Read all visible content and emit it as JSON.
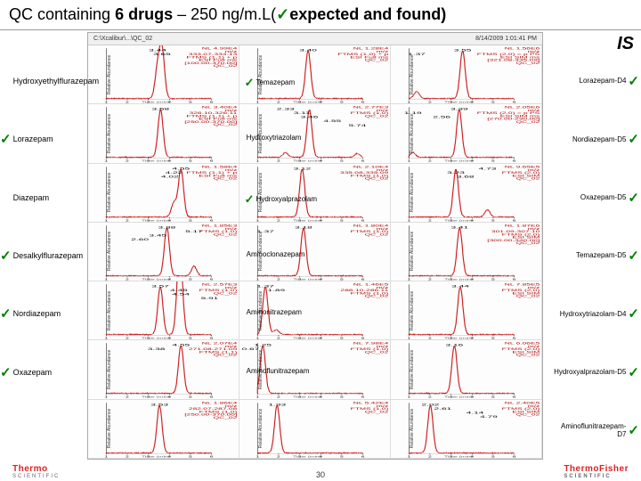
{
  "title": {
    "pre": "QC containing ",
    "bold": "6 drugs",
    "mid": " – 250 ng/m.L(",
    "post": "expected and found)"
  },
  "header": {
    "path": "C:\\Xcalibur\\...\\QC_02",
    "date": "8/14/2009 1:01:41 PM"
  },
  "is_label": "IS",
  "page_num": "30",
  "colors": {
    "peak": "#cc2222",
    "tick": "#008000",
    "meta": "#b00000"
  },
  "left_drugs": [
    {
      "name": "Hydroxyethylflurazepam",
      "tick": false
    },
    {
      "name": "Lorazepam",
      "tick": true
    },
    {
      "name": "Diazepam",
      "tick": false
    },
    {
      "name": "Desalkylflurazepam",
      "tick": true
    },
    {
      "name": "Nordiazepam",
      "tick": true
    },
    {
      "name": "Oxazepam",
      "tick": true
    }
  ],
  "mid_drugs": [
    {
      "name": "Temazepam",
      "tick": true
    },
    {
      "name": "Hydroxytriazolam",
      "tick": false
    },
    {
      "name": "Hydroxyalprazolam",
      "tick": true
    },
    {
      "name": "Aminoclonazepam",
      "tick": false
    },
    {
      "name": "Aminonitrazepam",
      "tick": false
    },
    {
      "name": "Aminoflunitrazepam",
      "tick": false
    }
  ],
  "right_drugs": [
    {
      "name": "Lorazepam-D4",
      "tick": true
    },
    {
      "name": "Nordiazepam-D5",
      "tick": true
    },
    {
      "name": "Oxazepam-D5",
      "tick": true
    },
    {
      "name": "Temazepam-D5",
      "tick": true
    },
    {
      "name": "Hydroxytriazolam-D4",
      "tick": true
    },
    {
      "name": "Hydroxyalprazolam-D5",
      "tick": true
    },
    {
      "name": "Aminoflunitrazepam-D7",
      "tick": true
    }
  ],
  "panels": [
    {
      "rts": [
        "3.44",
        "3.65"
      ],
      "peaks": [
        [
          3.44,
          0.6
        ],
        [
          3.65,
          1.0
        ]
      ],
      "meta": [
        "NL 4.99E4",
        "m/z",
        "333.07-334.13",
        "FTMS (1,1) + p",
        "ESI Full ms",
        "[100.00-370.00]",
        "QC_02"
      ]
    },
    {
      "rts": [
        "3.40"
      ],
      "peaks": [
        [
          3.4,
          1.0
        ]
      ],
      "meta": [
        "NL 1.28E4",
        "m/z",
        "FTMS (1,0) + p",
        "ESI Full ms",
        "QC_02"
      ]
    },
    {
      "rts": [
        "3.55",
        "1.37"
      ],
      "peaks": [
        [
          3.55,
          1.0
        ],
        [
          1.37,
          0.15
        ]
      ],
      "meta": [
        "NL 1.56E6",
        "m/z",
        "FTMS (2,0) = p PS",
        "ESI SIM ms",
        "[321.08-335.09]",
        "QC_02"
      ]
    },
    {
      "rts": [
        "3.58"
      ],
      "peaks": [
        [
          3.58,
          1.0
        ]
      ],
      "meta": [
        "NL 3.40E4",
        "m/z",
        "326.10-326.11",
        "FTMS (1,1) + p",
        "ESI Full ms",
        "[250.00-370.00]",
        "QC_02"
      ]
    },
    {
      "rts": [
        "2.33",
        "3.11",
        "3.46",
        "4.55",
        "5.74"
      ],
      "peaks": [
        [
          3.46,
          1.0
        ],
        [
          2.33,
          0.1
        ],
        [
          5.74,
          0.08
        ]
      ],
      "meta": [
        "NL 2.77E3",
        "m/z",
        "FTMS (1,0)",
        "QC_02"
      ]
    },
    {
      "rts": [
        "3.39",
        "1.19",
        "2.56"
      ],
      "peaks": [
        [
          3.39,
          1.0
        ],
        [
          1.19,
          0.1
        ]
      ],
      "meta": [
        "NL 2.05E6",
        "m/z",
        "FTMS (2,0) = p PS",
        "ESI SIM ms",
        "[270.00-290.00]",
        "QC_02"
      ]
    },
    {
      "rts": [
        "4.55",
        "4.22",
        "4.02"
      ],
      "peaks": [
        [
          4.55,
          1.0
        ],
        [
          4.22,
          0.3
        ]
      ],
      "meta": [
        "NL 1.58E4",
        "m/z",
        "FTMS (1,1) + p",
        "ESI Full ms",
        "QC_02"
      ]
    },
    {
      "rts": [
        "3.12"
      ],
      "peaks": [
        [
          3.12,
          1.0
        ]
      ],
      "meta": [
        "NL 2.10E4",
        "m/z",
        "335.08-335.09",
        "FTMS (1,0)",
        "QC_02"
      ]
    },
    {
      "rts": [
        "4.73",
        "3.23",
        "3.68"
      ],
      "peaks": [
        [
          3.23,
          1.0
        ],
        [
          4.73,
          0.15
        ]
      ],
      "meta": [
        "NL 9.65E5",
        "m/z",
        "FTMS (2,0)",
        "ESI SIM",
        "QC_02"
      ]
    },
    {
      "rts": [
        "3.88",
        "5.17",
        "3.45",
        "2.60"
      ],
      "peaks": [
        [
          3.88,
          1.0
        ],
        [
          5.17,
          0.2
        ]
      ],
      "meta": [
        "NL 1.85E3",
        "m/z",
        "FTMS (1,0)",
        "QC_02"
      ]
    },
    {
      "rts": [
        "3.18",
        "1.37"
      ],
      "peaks": [
        [
          3.18,
          1.0
        ]
      ],
      "meta": [
        "NL 1.80E4",
        "m/z",
        "FTMS (1,0)",
        "QC_02"
      ]
    },
    {
      "rts": [
        "3.41"
      ],
      "peaks": [
        [
          3.41,
          1.0
        ]
      ],
      "meta": [
        "NL 1.87E6",
        "m/z",
        "301.09-307.10",
        "FTMS (2,0)",
        "ESI SIM",
        "[300.00-340.00]",
        "QC_02"
      ]
    },
    {
      "rts": [
        "3.57",
        "4.45",
        "4.54",
        "5.91"
      ],
      "peaks": [
        [
          3.57,
          1.0
        ],
        [
          4.45,
          1.0
        ],
        [
          4.54,
          0.9
        ]
      ],
      "meta": [
        "NL 2.57E3",
        "m/z",
        "FTMS (1,0)",
        "QC_02"
      ]
    },
    {
      "rts": [
        "1.37",
        "1.89"
      ],
      "peaks": [
        [
          1.37,
          1.0
        ],
        [
          1.89,
          0.1
        ]
      ],
      "meta": [
        "NL 1.46E5",
        "m/z",
        "286.10-286.11",
        "FTMS (1,0)",
        "QC_02"
      ]
    },
    {
      "rts": [
        "3.44"
      ],
      "peaks": [
        [
          3.44,
          1.0
        ]
      ],
      "meta": [
        "NL 7.85E5",
        "m/z",
        "FTMS (2,0)",
        "ESI SIM",
        "QC_02"
      ]
    },
    {
      "rts": [
        "4.55",
        "3.38"
      ],
      "peaks": [
        [
          4.55,
          1.0
        ]
      ],
      "meta": [
        "NL 2.07E4",
        "m/z",
        "271.08-271.09",
        "FTMS (1,1)",
        "QC_02"
      ]
    },
    {
      "rts": [
        "1.25",
        "0.67"
      ],
      "peaks": [
        [
          1.25,
          1.0
        ],
        [
          0.67,
          0.3
        ]
      ],
      "meta": [
        "NL 7.98E4",
        "m/z",
        "FTMS (1,0)",
        "QC_02"
      ]
    },
    {
      "rts": [
        "3.16"
      ],
      "peaks": [
        [
          3.16,
          1.0
        ]
      ],
      "meta": [
        "NL 6.06E5",
        "m/z",
        "FTMS (2,0)",
        "ESI SIM",
        "QC_02"
      ]
    },
    {
      "rts": [
        "3.53"
      ],
      "peaks": [
        [
          3.53,
          1.0
        ]
      ],
      "meta": [
        "NL 1.86E4",
        "m/z",
        "282.07-287.08",
        "FTMS (1,0)",
        "[250.00-370.00]",
        "QC_02"
      ]
    },
    {
      "rts": [
        "1.93"
      ],
      "peaks": [
        [
          1.93,
          1.0
        ]
      ],
      "meta": [
        "NL 5.42E4",
        "m/z",
        "FTMS (1,0)",
        "QC_02"
      ]
    },
    {
      "rts": [
        "2.02",
        "2.61",
        "4.14",
        "4.79"
      ],
      "peaks": [
        [
          2.02,
          1.0
        ]
      ],
      "meta": [
        "NL 2.40E5",
        "m/z",
        "FTMS (2,0)",
        "ESI SIM",
        "QC_02"
      ]
    }
  ],
  "xrange": [
    1,
    6
  ],
  "logos": {
    "left": "Thermo",
    "left_sub": "SCIENTIFIC",
    "right": "ThermoFisher",
    "right_sub": "SCIENTIFIC"
  }
}
